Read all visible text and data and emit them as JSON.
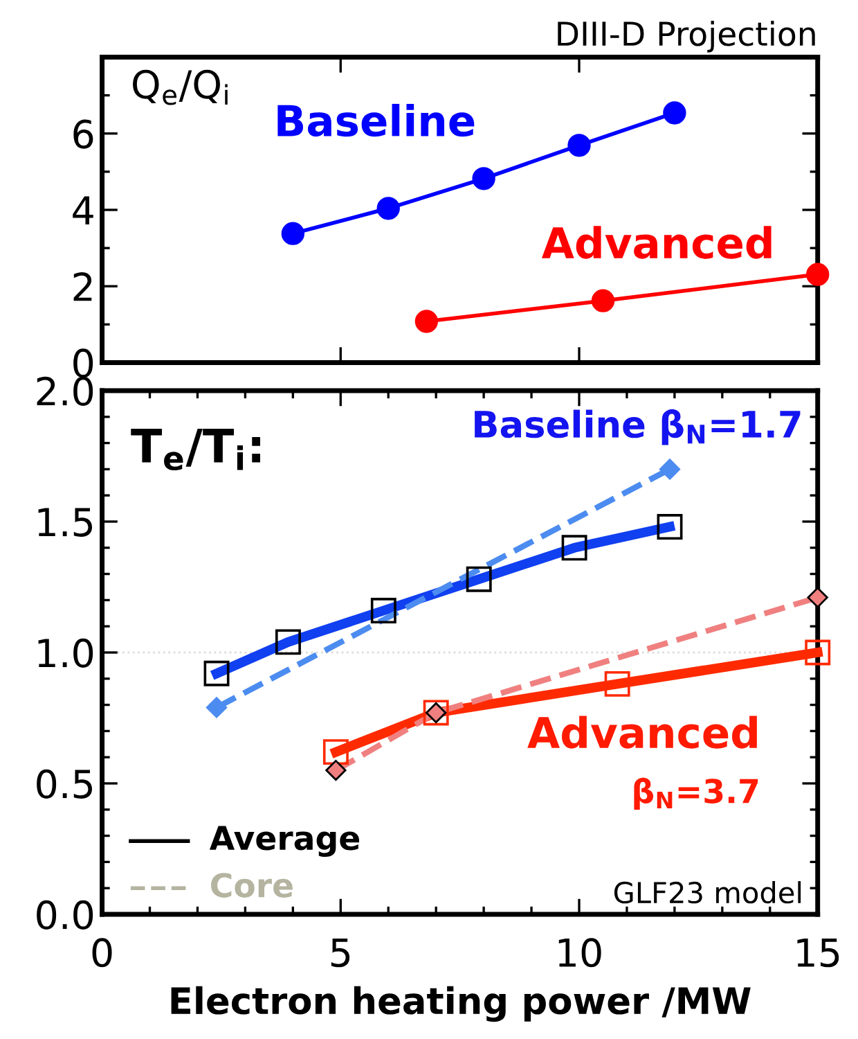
{
  "chart_data": [
    {
      "type": "line",
      "title": "DIII-D Projection",
      "marker": "circle",
      "line_style": "solid",
      "grid": false,
      "tick_labels": "y",
      "xlim": [
        0,
        15
      ],
      "xticks": [
        0,
        5,
        10,
        15
      ],
      "ylim": [
        0,
        8
      ],
      "yticks": [
        0,
        2,
        4,
        6,
        {
          "value": 8,
          "label": null
        }
      ],
      "annotations": [
        "Q$_{e}$/Q$_{i}$",
        "Baseline",
        "Advanced"
      ],
      "series": [
        {
          "color": "#0000ff",
          "x": [
            4,
            6,
            8,
            10,
            12
          ],
          "values": [
            3.38,
            4.04,
            4.82,
            5.69,
            6.54
          ]
        },
        {
          "color": "#ff0000",
          "x": [
            6.8,
            10.5,
            15
          ],
          "values": [
            1.08,
            1.62,
            2.31
          ]
        }
      ]
    },
    {
      "type": "line",
      "xlabel": "Electron heating power /MW",
      "grid": false,
      "xlim": [
        0,
        15
      ],
      "xticks": [
        0,
        5,
        10,
        15
      ],
      "ylim": [
        0,
        2
      ],
      "yticks": [
        {
          "value": 0,
          "label": "0.0"
        },
        0.5,
        {
          "value": 1,
          "label": "1.0"
        },
        1.5,
        {
          "value": 2,
          "label": "2.0"
        }
      ],
      "ref_lines": [
        {
          "axis": "y",
          "value": 1.0,
          "color": "#dddddd",
          "line_style": "dotted"
        }
      ],
      "annotations": [
        "T$_{e}$/T$_{i}$:",
        "Baseline β$_{N}$=1.7",
        "Advanced",
        "β$_{N}$=3.7",
        "GLF23 model",
        "Average",
        "Core"
      ],
      "series": [
        {
          "color": "#1040f0",
          "line_style": "solid",
          "marker": "square",
          "x": [
            2.4,
            3.9,
            5.9,
            7.9,
            9.9,
            11.9
          ],
          "values": [
            0.92,
            1.04,
            1.16,
            1.28,
            1.4,
            1.48
          ]
        },
        {
          "color": "#4c8cf0",
          "line_style": "dashed",
          "marker": "diamond",
          "x": [
            2.4,
            11.9
          ],
          "values": [
            0.79,
            1.7
          ]
        },
        {
          "color": "#ff2a00",
          "line_style": "solid",
          "marker": "square",
          "x": [
            4.9,
            7.0,
            10.8,
            15.0
          ],
          "values": [
            0.62,
            0.77,
            0.88,
            1.0
          ]
        },
        {
          "color": "#f08080",
          "line_style": "dashed",
          "marker": "diamond",
          "x": [
            4.9,
            7.0,
            15.0
          ],
          "values": [
            0.55,
            0.77,
            1.21
          ]
        }
      ]
    }
  ]
}
